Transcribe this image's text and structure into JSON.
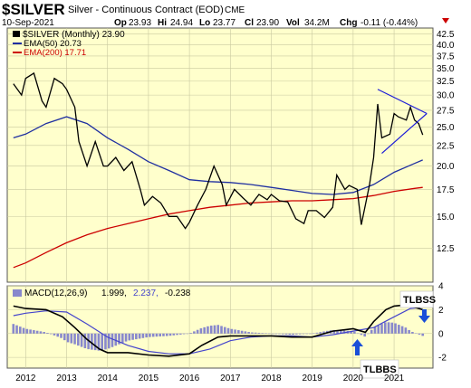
{
  "header": {
    "symbol": "$SILVER",
    "name": "Silver - Continuous Contract (EOD)",
    "exchange": "CME",
    "date": "10-Sep-2021",
    "open_label": "Op",
    "open": "23.93",
    "high_label": "Hi",
    "high": "24.94",
    "low_label": "Lo",
    "low": "23.77",
    "close_label": "Cl",
    "close": "23.90",
    "vol_label": "Vol",
    "vol": "34.2M",
    "chg_label": "Chg",
    "chg": "-0.11 (-0.44%)"
  },
  "legend": {
    "price": "$SILVER (Monthly) 23.90",
    "ema50": "EMA(50) 20.73",
    "ema200": "EMA(200) 17.71"
  },
  "macd_legend": {
    "name": "MACD(12,26,9)",
    "v1": "1.999,",
    "v2": "2.237,",
    "v3": "-0.238"
  },
  "annotations": {
    "tlbss": "TLBSS",
    "tlbbs": "TLBBS"
  },
  "colors": {
    "plot_bg": "#ffffcc",
    "price": "#000000",
    "ema50": "#1f2fa0",
    "ema200": "#cc0000",
    "macd": "#000000",
    "signal": "#4444cc",
    "histogram": "#8888cc",
    "arrow": "#1a4fd8",
    "trendline": "#1a1ad8"
  },
  "chart_data": {
    "type": "line",
    "price_panel": {
      "x_years": [
        2012,
        2013,
        2014,
        2015,
        2016,
        2017,
        2018,
        2019,
        2020,
        2021
      ],
      "y_scale": "log",
      "y_ticks": [
        12.5,
        15.0,
        17.5,
        20.0,
        22.5,
        25.0,
        27.5,
        30.0,
        32.5,
        35.0,
        37.5,
        40.0,
        42.5
      ],
      "series": [
        {
          "name": "$SILVER (Monthly)",
          "points": [
            [
              2011.7,
              32
            ],
            [
              2011.9,
              30
            ],
            [
              2012.0,
              33
            ],
            [
              2012.2,
              34
            ],
            [
              2012.4,
              29
            ],
            [
              2012.5,
              28
            ],
            [
              2012.7,
              33
            ],
            [
              2012.9,
              32
            ],
            [
              2013.0,
              31
            ],
            [
              2013.2,
              28
            ],
            [
              2013.3,
              23
            ],
            [
              2013.5,
              20
            ],
            [
              2013.7,
              23
            ],
            [
              2013.9,
              20
            ],
            [
              2014.0,
              20
            ],
            [
              2014.2,
              21
            ],
            [
              2014.4,
              19.5
            ],
            [
              2014.6,
              20.5
            ],
            [
              2014.8,
              17.5
            ],
            [
              2014.9,
              16
            ],
            [
              2015.1,
              16.8
            ],
            [
              2015.3,
              16.2
            ],
            [
              2015.5,
              15
            ],
            [
              2015.7,
              15
            ],
            [
              2015.9,
              14
            ],
            [
              2016.0,
              14.5
            ],
            [
              2016.2,
              16
            ],
            [
              2016.4,
              17.5
            ],
            [
              2016.6,
              20
            ],
            [
              2016.8,
              18
            ],
            [
              2016.9,
              16
            ],
            [
              2017.1,
              17.5
            ],
            [
              2017.3,
              16.7
            ],
            [
              2017.5,
              16
            ],
            [
              2017.7,
              17
            ],
            [
              2017.9,
              16.5
            ],
            [
              2018.0,
              17
            ],
            [
              2018.2,
              16.4
            ],
            [
              2018.4,
              16.3
            ],
            [
              2018.6,
              14.8
            ],
            [
              2018.8,
              14.4
            ],
            [
              2018.9,
              15.5
            ],
            [
              2019.1,
              15.5
            ],
            [
              2019.3,
              14.9
            ],
            [
              2019.5,
              15.8
            ],
            [
              2019.6,
              19
            ],
            [
              2019.8,
              17.5
            ],
            [
              2019.9,
              17.9
            ],
            [
              2020.1,
              17.5
            ],
            [
              2020.2,
              14.3
            ],
            [
              2020.4,
              18
            ],
            [
              2020.5,
              21
            ],
            [
              2020.6,
              28.5
            ],
            [
              2020.7,
              23.5
            ],
            [
              2020.9,
              24
            ],
            [
              2021.0,
              27
            ],
            [
              2021.1,
              26.5
            ],
            [
              2021.3,
              26
            ],
            [
              2021.4,
              28
            ],
            [
              2021.5,
              26
            ],
            [
              2021.6,
              25.5
            ],
            [
              2021.7,
              23.9
            ]
          ]
        },
        {
          "name": "EMA(50)",
          "points": [
            [
              2011.7,
              23.5
            ],
            [
              2012.0,
              24
            ],
            [
              2012.5,
              25.5
            ],
            [
              2013.0,
              26.5
            ],
            [
              2013.5,
              25.5
            ],
            [
              2014.0,
              23.5
            ],
            [
              2014.5,
              22
            ],
            [
              2015.0,
              20.5
            ],
            [
              2015.5,
              19.5
            ],
            [
              2016.0,
              18.5
            ],
            [
              2016.5,
              18.3
            ],
            [
              2017.0,
              18.2
            ],
            [
              2017.5,
              18.0
            ],
            [
              2018.0,
              17.7
            ],
            [
              2018.5,
              17.4
            ],
            [
              2019.0,
              17.1
            ],
            [
              2019.5,
              17.0
            ],
            [
              2020.0,
              17.2
            ],
            [
              2020.5,
              18.0
            ],
            [
              2021.0,
              19.3
            ],
            [
              2021.5,
              20.3
            ],
            [
              2021.7,
              20.7
            ]
          ]
        },
        {
          "name": "EMA(200)",
          "points": [
            [
              2011.7,
              11.2
            ],
            [
              2012.0,
              11.5
            ],
            [
              2012.5,
              12.2
            ],
            [
              2013.0,
              12.9
            ],
            [
              2013.5,
              13.5
            ],
            [
              2014.0,
              14.0
            ],
            [
              2014.5,
              14.4
            ],
            [
              2015.0,
              14.8
            ],
            [
              2015.5,
              15.2
            ],
            [
              2016.0,
              15.5
            ],
            [
              2016.5,
              15.8
            ],
            [
              2017.0,
              16.0
            ],
            [
              2017.5,
              16.2
            ],
            [
              2018.0,
              16.3
            ],
            [
              2018.5,
              16.4
            ],
            [
              2019.0,
              16.4
            ],
            [
              2019.5,
              16.5
            ],
            [
              2020.0,
              16.6
            ],
            [
              2020.5,
              16.9
            ],
            [
              2021.0,
              17.3
            ],
            [
              2021.5,
              17.6
            ],
            [
              2021.7,
              17.7
            ]
          ]
        }
      ],
      "trendlines": [
        {
          "from": [
            2020.6,
            31.0
          ],
          "to": [
            2021.8,
            27.0
          ]
        },
        {
          "from": [
            2020.7,
            21.5
          ],
          "to": [
            2021.8,
            27.0
          ]
        }
      ]
    },
    "macd_panel": {
      "y_ticks": [
        -2,
        0,
        2,
        4
      ],
      "series": [
        {
          "name": "MACD(12,26,9)",
          "points": [
            [
              2011.7,
              2.3
            ],
            [
              2012.0,
              2.1
            ],
            [
              2012.5,
              2.0
            ],
            [
              2012.9,
              1.4
            ],
            [
              2013.2,
              0.5
            ],
            [
              2013.5,
              -0.5
            ],
            [
              2013.8,
              -1.3
            ],
            [
              2014.0,
              -1.6
            ],
            [
              2014.5,
              -1.6
            ],
            [
              2015.0,
              -1.8
            ],
            [
              2015.5,
              -1.9
            ],
            [
              2016.0,
              -1.7
            ],
            [
              2016.3,
              -1.0
            ],
            [
              2016.7,
              -0.3
            ],
            [
              2017.0,
              -0.2
            ],
            [
              2017.5,
              -0.2
            ],
            [
              2018.0,
              -0.2
            ],
            [
              2018.5,
              -0.3
            ],
            [
              2019.0,
              -0.3
            ],
            [
              2019.5,
              0.2
            ],
            [
              2020.0,
              0.4
            ],
            [
              2020.3,
              0.1
            ],
            [
              2020.5,
              1.0
            ],
            [
              2020.8,
              2.0
            ],
            [
              2021.0,
              2.3
            ],
            [
              2021.3,
              2.4
            ],
            [
              2021.7,
              2.0
            ]
          ]
        },
        {
          "name": "Signal",
          "points": [
            [
              2011.7,
              1.5
            ],
            [
              2012.0,
              1.7
            ],
            [
              2012.5,
              1.9
            ],
            [
              2013.0,
              1.8
            ],
            [
              2013.5,
              0.8
            ],
            [
              2014.0,
              -0.3
            ],
            [
              2014.5,
              -1.0
            ],
            [
              2015.0,
              -1.5
            ],
            [
              2015.5,
              -1.7
            ],
            [
              2016.0,
              -1.7
            ],
            [
              2016.5,
              -1.3
            ],
            [
              2017.0,
              -0.6
            ],
            [
              2017.5,
              -0.3
            ],
            [
              2018.0,
              -0.2
            ],
            [
              2018.5,
              -0.2
            ],
            [
              2019.0,
              -0.3
            ],
            [
              2019.5,
              -0.1
            ],
            [
              2020.0,
              0.2
            ],
            [
              2020.5,
              0.5
            ],
            [
              2021.0,
              1.4
            ],
            [
              2021.4,
              2.1
            ],
            [
              2021.7,
              2.2
            ]
          ]
        }
      ]
    }
  }
}
